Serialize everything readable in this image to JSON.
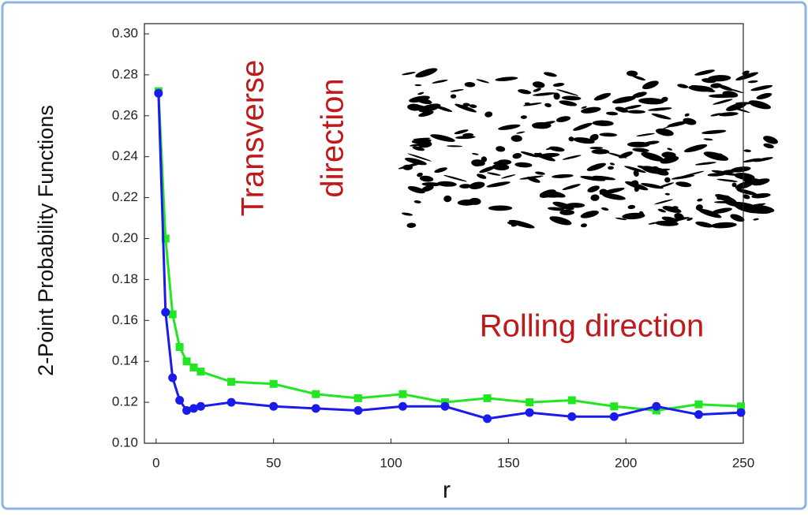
{
  "chart_data": {
    "type": "line",
    "x_label": "r",
    "y_label": "2-Point Probability Functions",
    "annotations": [
      "Transverse",
      "direction",
      "Rolling direction"
    ],
    "x": [
      1,
      4,
      7,
      10,
      13,
      16,
      19,
      32,
      50,
      68,
      86,
      105,
      123,
      141,
      159,
      177,
      195,
      213,
      231,
      249
    ],
    "series": [
      {
        "color": "#22e622",
        "marker": "square",
        "values": [
          0.272,
          0.2,
          0.163,
          0.147,
          0.14,
          0.137,
          0.135,
          0.13,
          0.129,
          0.124,
          0.122,
          0.124,
          0.12,
          0.122,
          0.12,
          0.121,
          0.118,
          0.116,
          0.119,
          0.118
        ]
      },
      {
        "color": "#1a1aeb",
        "marker": "circle",
        "values": [
          0.271,
          0.164,
          0.132,
          0.121,
          0.116,
          0.117,
          0.118,
          0.12,
          0.118,
          0.117,
          0.116,
          0.118,
          0.118,
          0.112,
          0.115,
          0.113,
          0.113,
          0.118,
          0.114,
          0.115
        ]
      }
    ],
    "xlim": [
      -5,
      250
    ],
    "ylim": [
      0.1,
      0.305
    ],
    "xticks": [
      0,
      50,
      100,
      150,
      200,
      250
    ],
    "yticks": [
      {
        "value": 0.1,
        "label": "0.10"
      },
      0.12,
      0.14,
      0.16,
      0.18,
      {
        "value": 0.2,
        "label": "0.20"
      },
      0.22,
      0.24,
      0.26,
      0.28,
      {
        "value": 0.3,
        "label": "0.30"
      }
    ]
  }
}
